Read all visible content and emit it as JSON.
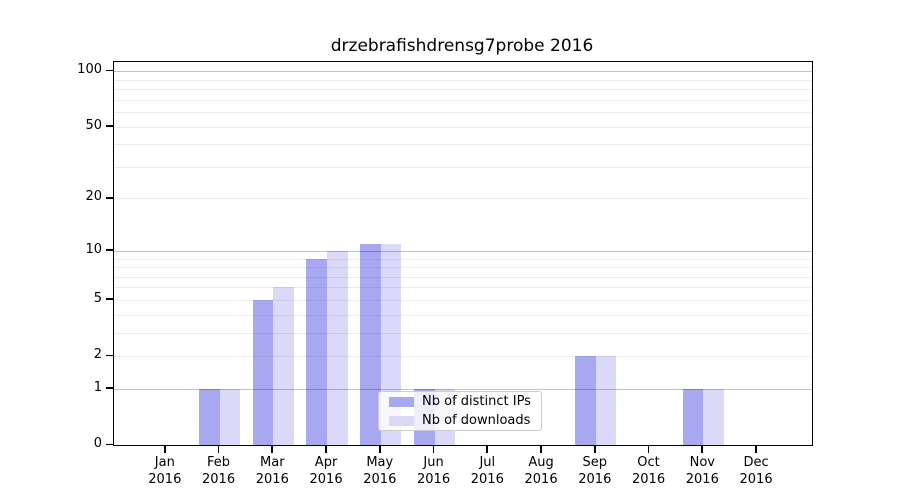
{
  "title": "drzebrafishdrensg7probe 2016",
  "chart_data": {
    "type": "bar",
    "title": "drzebrafishdrensg7probe 2016",
    "year": "2016",
    "categories": [
      "Jan",
      "Feb",
      "Mar",
      "Apr",
      "May",
      "Jun",
      "Jul",
      "Aug",
      "Sep",
      "Oct",
      "Nov",
      "Dec"
    ],
    "series": [
      {
        "name": "Nb of distinct IPs",
        "color": "#a8a8f0",
        "values": [
          0,
          1,
          5,
          9,
          11,
          1,
          0,
          0,
          2,
          0,
          1,
          0
        ]
      },
      {
        "name": "Nb of downloads",
        "color": "#dadaf8",
        "values": [
          0,
          1,
          6,
          10,
          11,
          1,
          0,
          0,
          2,
          0,
          1,
          0
        ]
      }
    ],
    "y_scale": "log10(1+v)",
    "y_ticks_labeled": [
      0,
      1,
      2,
      5,
      10,
      20,
      50,
      100
    ],
    "y_gridlines_major": [
      1,
      10,
      100
    ],
    "y_gridlines_minor": [
      2,
      3,
      4,
      5,
      6,
      7,
      8,
      9,
      20,
      30,
      40,
      50,
      60,
      70,
      80,
      90
    ],
    "ylim": [
      0,
      112
    ],
    "grid": true,
    "legend_position": "lower-center",
    "axis_color": "#000000",
    "background_color": "#ffffff"
  }
}
